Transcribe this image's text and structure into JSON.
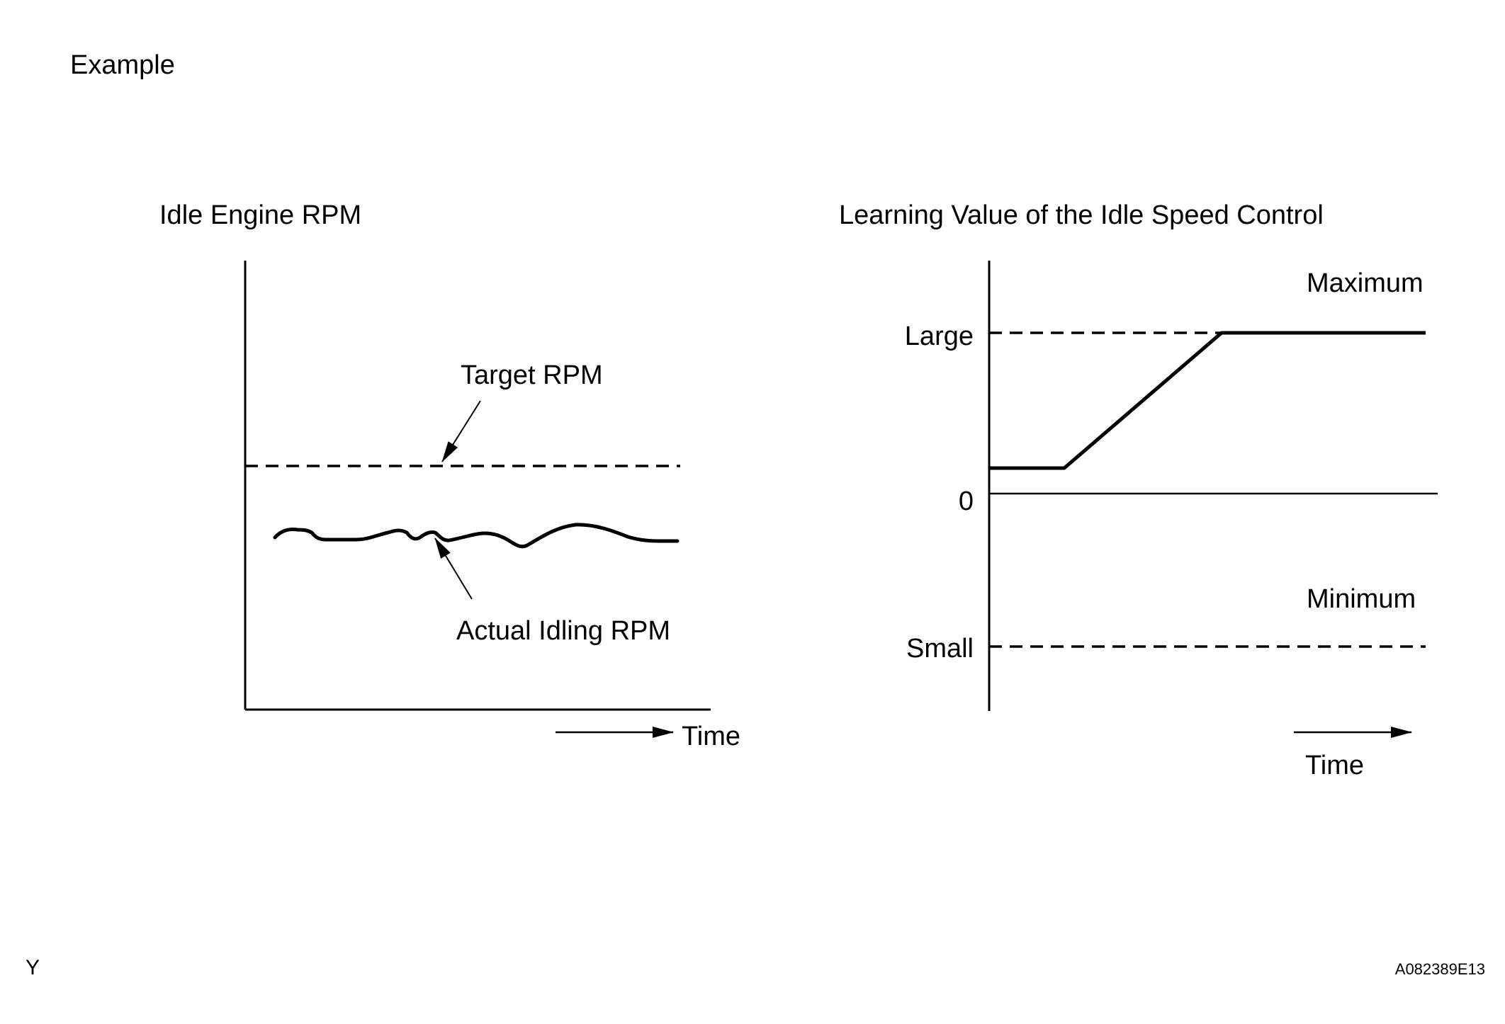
{
  "page": {
    "heading": "Example",
    "corner_left": "Y",
    "figure_id": "A082389E13"
  },
  "left_panel": {
    "title": "Idle Engine RPM",
    "target_label": "Target RPM",
    "actual_label": "Actual Idling RPM",
    "x_axis_label": "Time"
  },
  "right_panel": {
    "title": "Learning Value of the Idle Speed Control",
    "y_tick_large": "Large",
    "y_tick_zero": "0",
    "y_tick_small": "Small",
    "max_label": "Maximum",
    "min_label": "Minimum",
    "x_axis_label": "Time"
  },
  "colors": {
    "ink": "#000000",
    "background": "#ffffff"
  }
}
